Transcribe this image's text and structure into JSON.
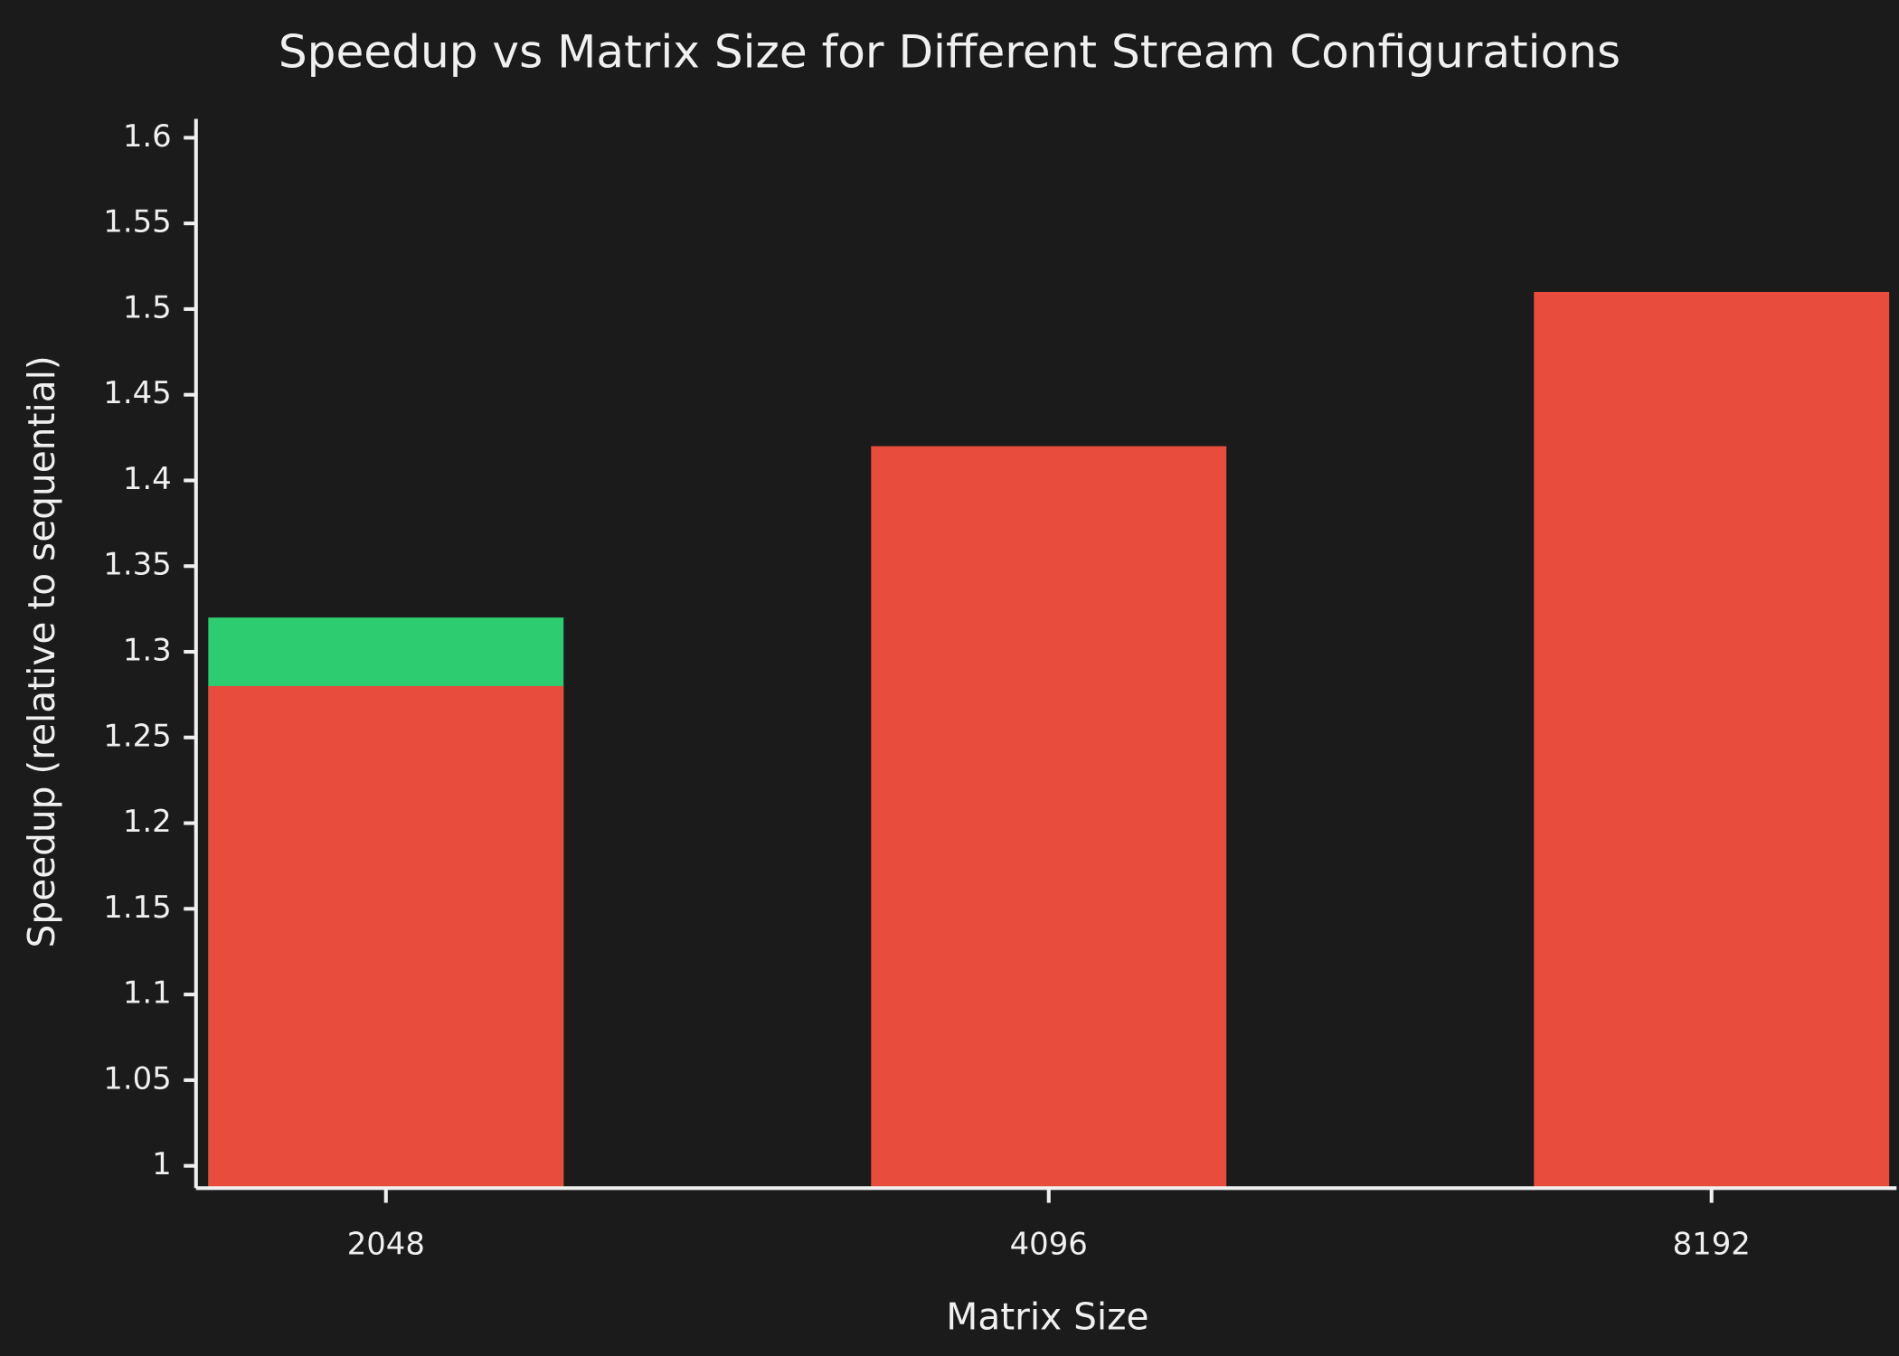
{
  "chart_data": {
    "type": "bar",
    "title": "Speedup vs Matrix Size for Different Stream Configurations",
    "x_label": "Matrix Size",
    "y_label": "Speedup (relative to sequential)",
    "categories": [
      "2048",
      "4096",
      "8192"
    ],
    "series": [
      {
        "color": "#2ecc71",
        "values": [
          1.32,
          null,
          null
        ]
      },
      {
        "color": "#e74c3c",
        "values": [
          1.28,
          1.42,
          1.51
        ]
      }
    ],
    "ylim": [
      0.987,
      1.611
    ],
    "yticks": [
      1,
      1.05,
      1.1,
      1.15,
      1.2,
      1.25,
      1.3,
      1.35,
      1.4,
      1.45,
      1.5,
      1.55,
      1.6
    ],
    "grid": false
  }
}
